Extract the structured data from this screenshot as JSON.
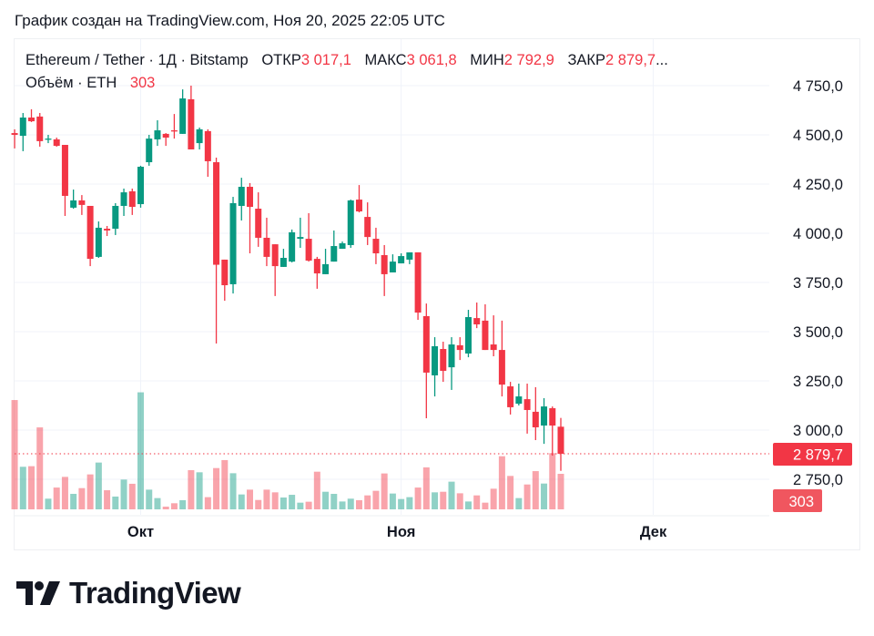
{
  "caption": "График создан на TradingView.com, Ноя 20, 2025 22:05 UTC",
  "legend": {
    "symbol": "Ethereum / Tether · 1Д · Bitstamp",
    "open_label": "ОТКР",
    "open_value": "3 017,1",
    "high_label": "МАКС",
    "high_value": "3 061,8",
    "low_label": "МИН",
    "low_value": "2 792,9",
    "close_label": "ЗАКР",
    "close_value": "2 879,7",
    "more": "...",
    "volume_label": "Объём · ETH",
    "volume_value": "303"
  },
  "logo": {
    "text": "TradingView"
  },
  "colors": {
    "up": "#089981",
    "down": "#F23645",
    "grid": "#f0f3fa",
    "text": "#131722"
  },
  "chart_data": {
    "type": "candlestick",
    "symbol": "Ethereum / Tether",
    "interval": "1Д",
    "exchange": "Bitstamp",
    "x_ticks": [
      {
        "label": "Окт",
        "date": "2025-10-01"
      },
      {
        "label": "Ноя",
        "date": "2025-11-01"
      },
      {
        "label": "Дек",
        "date": "2025-12-01"
      }
    ],
    "x_range": [
      "2025-09-16",
      "2025-12-05"
    ],
    "y_ticks": [
      "4 750,0",
      "4 500,0",
      "4 250,0",
      "4 000,0",
      "3 750,0",
      "3 500,0",
      "3 250,0",
      "3 000,0",
      "2 750,0"
    ],
    "y_tick_values": [
      4750,
      4500,
      4250,
      4000,
      3750,
      3500,
      3250,
      3000,
      2750
    ],
    "ylim": [
      2690,
      4800
    ],
    "last_price_label": "2 879,7",
    "last_price": 2879.7,
    "last_volume_label": "303",
    "grid": true,
    "start_date": "2025-09-16",
    "ohlcv": [
      [
        4509,
        4528,
        4431,
        4500,
        932
      ],
      [
        4495,
        4611,
        4417,
        4588,
        363
      ],
      [
        4588,
        4630,
        4565,
        4569,
        368
      ],
      [
        4593,
        4611,
        4440,
        4468,
        699
      ],
      [
        4477,
        4500,
        4458,
        4481,
        91
      ],
      [
        4477,
        4486,
        4440,
        4444,
        186
      ],
      [
        4449,
        4449,
        4088,
        4190,
        277
      ],
      [
        4130,
        4222,
        4125,
        4167,
        132
      ],
      [
        4167,
        4194,
        4093,
        4144,
        181
      ],
      [
        4139,
        4139,
        3833,
        3870,
        298
      ],
      [
        3880,
        4060,
        3875,
        4028,
        399
      ],
      [
        4023,
        4037,
        3986,
        4014,
        163
      ],
      [
        4023,
        4153,
        3991,
        4139,
        109
      ],
      [
        4139,
        4227,
        4088,
        4208,
        254
      ],
      [
        4213,
        4227,
        4093,
        4134,
        218
      ],
      [
        4148,
        4343,
        4130,
        4338,
        998
      ],
      [
        4361,
        4500,
        4343,
        4481,
        168
      ],
      [
        4477,
        4574,
        4444,
        4523,
        96
      ],
      [
        4505,
        4509,
        4444,
        4486,
        23
      ],
      [
        4523,
        4606,
        4481,
        4519,
        52
      ],
      [
        4505,
        4731,
        4505,
        4685,
        78
      ],
      [
        4681,
        4750,
        4426,
        4426,
        334
      ],
      [
        4458,
        4537,
        4426,
        4528,
        316
      ],
      [
        4519,
        4528,
        4287,
        4366,
        104
      ],
      [
        4361,
        4384,
        3440,
        3840,
        352
      ],
      [
        3866,
        3866,
        3657,
        3736,
        420
      ],
      [
        3741,
        4185,
        3694,
        4153,
        308
      ],
      [
        4139,
        4282,
        4065,
        4236,
        127
      ],
      [
        4236,
        4255,
        3898,
        4134,
        168
      ],
      [
        4125,
        4208,
        3931,
        3977,
        80
      ],
      [
        3977,
        4079,
        3833,
        3880,
        168
      ],
      [
        3944,
        3944,
        3681,
        3833,
        145
      ],
      [
        3829,
        3921,
        3829,
        3875,
        101
      ],
      [
        3856,
        4019,
        3852,
        4005,
        124
      ],
      [
        3972,
        4079,
        3926,
        3981,
        57
      ],
      [
        3972,
        4102,
        3856,
        3861,
        65
      ],
      [
        3870,
        3880,
        3718,
        3796,
        321
      ],
      [
        3792,
        3921,
        3792,
        3843,
        150
      ],
      [
        3856,
        4014,
        3856,
        3935,
        132
      ],
      [
        3921,
        3958,
        3921,
        3949,
        67
      ],
      [
        3940,
        4171,
        3926,
        4167,
        91
      ],
      [
        4171,
        4245,
        4106,
        4111,
        78
      ],
      [
        4083,
        4157,
        3940,
        3981,
        119
      ],
      [
        3972,
        4028,
        3843,
        3898,
        158
      ],
      [
        3889,
        3940,
        3681,
        3792,
        306
      ],
      [
        3801,
        3893,
        3801,
        3856,
        135
      ],
      [
        3847,
        3898,
        3847,
        3884,
        88
      ],
      [
        3866,
        3903,
        3843,
        3903,
        104
      ],
      [
        3903,
        3903,
        3560,
        3597,
        186
      ],
      [
        3579,
        3643,
        3060,
        3292,
        358
      ],
      [
        3278,
        3472,
        3171,
        3426,
        145
      ],
      [
        3412,
        3449,
        3245,
        3301,
        150
      ],
      [
        3319,
        3472,
        3204,
        3435,
        236
      ],
      [
        3431,
        3472,
        3356,
        3407,
        137
      ],
      [
        3389,
        3611,
        3370,
        3574,
        67
      ],
      [
        3569,
        3648,
        3518,
        3537,
        119
      ],
      [
        3556,
        3639,
        3407,
        3407,
        57
      ],
      [
        3435,
        3583,
        3375,
        3407,
        176
      ],
      [
        3407,
        3556,
        3171,
        3231,
        453
      ],
      [
        3222,
        3245,
        3079,
        3116,
        285
      ],
      [
        3134,
        3236,
        3125,
        3171,
        96
      ],
      [
        3157,
        3236,
        2982,
        3102,
        212
      ],
      [
        3093,
        3218,
        2949,
        3014,
        326
      ],
      [
        3023,
        3162,
        2930,
        3120,
        220
      ],
      [
        3111,
        3120,
        2870,
        3023,
        479
      ],
      [
        3017.1,
        3061.8,
        2792.9,
        2879.7,
        303
      ]
    ]
  }
}
